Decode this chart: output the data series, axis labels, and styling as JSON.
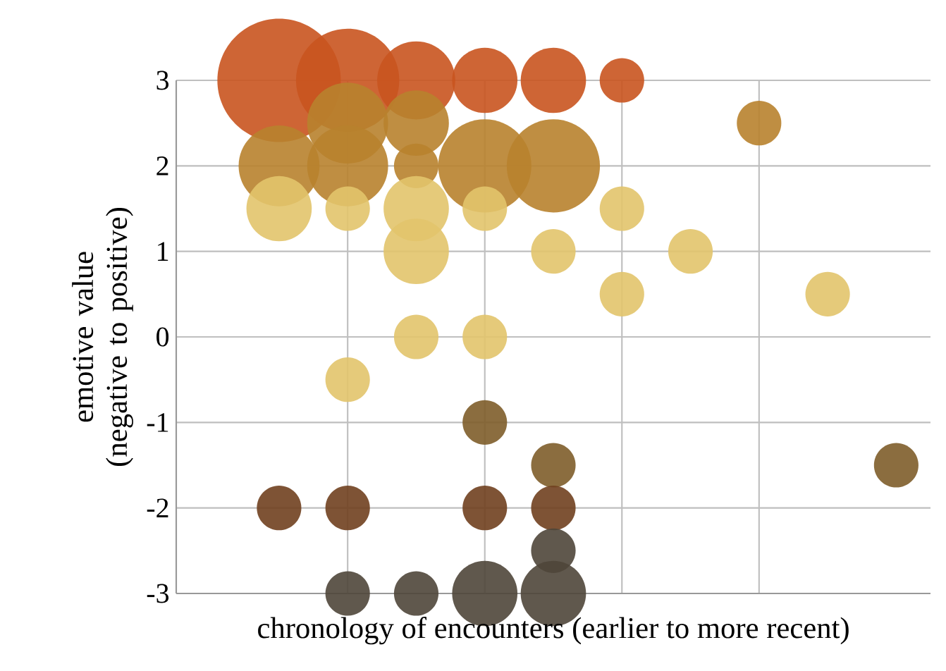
{
  "chart_data": {
    "type": "bubble",
    "xlabel": "chronology of encounters (earlier to more recent)",
    "ylabel": "emotive value (negative to positive)",
    "categories": [
      null,
      null,
      null,
      null,
      null,
      null,
      null,
      null,
      null,
      null,
      null
    ],
    "ylim": [
      -3,
      3
    ],
    "yticks": [
      {
        "value": -3,
        "label": "-3"
      },
      {
        "value": -2,
        "label": "-2"
      },
      {
        "value": -1,
        "label": "-1"
      },
      {
        "value": 0,
        "label": "0"
      },
      {
        "value": 1,
        "label": "1"
      },
      {
        "value": 2,
        "label": "2"
      },
      {
        "value": 3,
        "label": "3"
      }
    ],
    "tick_labels": "y",
    "grid": true,
    "series": [
      {
        "color": "#c9541f",
        "values": [
          null,
          3,
          3,
          3,
          3,
          3,
          3,
          null,
          null,
          null,
          null
        ],
        "sizes": [
          null,
          1,
          0.7,
          0.4,
          0.28,
          0.28,
          0.13,
          null,
          null,
          null,
          null
        ]
      },
      {
        "color": "#b8822e",
        "values": [
          null,
          null,
          2.5,
          2.5,
          null,
          null,
          null,
          null,
          2.5,
          null,
          null
        ],
        "sizes": [
          null,
          null,
          0.43,
          0.28,
          null,
          null,
          null,
          null,
          0.13,
          null,
          null
        ]
      },
      {
        "color": "#b8822e",
        "values": [
          null,
          2,
          2,
          2,
          2,
          2,
          null,
          null,
          null,
          null,
          null
        ],
        "sizes": [
          null,
          0.43,
          0.43,
          0.13,
          0.57,
          0.57,
          null,
          null,
          null,
          null,
          null
        ]
      },
      {
        "color": "#e2c46c",
        "values": [
          null,
          1.5,
          1.5,
          1.5,
          1.5,
          null,
          1.5,
          null,
          null,
          null,
          null
        ],
        "sizes": [
          null,
          0.28,
          0.13,
          0.28,
          0.13,
          null,
          0.13,
          null,
          null,
          null,
          null
        ]
      },
      {
        "color": "#e2c46c",
        "values": [
          null,
          null,
          null,
          1,
          null,
          1,
          null,
          1,
          null,
          null,
          null
        ],
        "sizes": [
          null,
          null,
          null,
          0.28,
          null,
          0.13,
          null,
          0.13,
          null,
          null,
          null
        ]
      },
      {
        "color": "#e2c46c",
        "values": [
          null,
          null,
          null,
          null,
          null,
          null,
          0.5,
          null,
          null,
          0.5,
          null
        ],
        "sizes": [
          null,
          null,
          null,
          null,
          null,
          null,
          0.13,
          null,
          null,
          0.13,
          null
        ]
      },
      {
        "color": "#e2c46c",
        "values": [
          null,
          null,
          null,
          0,
          0,
          null,
          null,
          null,
          null,
          null,
          null
        ],
        "sizes": [
          null,
          null,
          null,
          0.13,
          0.13,
          null,
          null,
          null,
          null,
          null,
          null
        ]
      },
      {
        "color": "#e2c46c",
        "values": [
          null,
          null,
          -0.5,
          null,
          null,
          null,
          null,
          null,
          null,
          null,
          null
        ],
        "sizes": [
          null,
          null,
          0.13,
          null,
          null,
          null,
          null,
          null,
          null,
          null,
          null
        ]
      },
      {
        "color": "#7e5d2a",
        "values": [
          null,
          null,
          null,
          null,
          -1,
          null,
          null,
          null,
          null,
          null,
          null
        ],
        "sizes": [
          null,
          null,
          null,
          null,
          0.13,
          null,
          null,
          null,
          null,
          null,
          null
        ]
      },
      {
        "color": "#7e5d2a",
        "values": [
          null,
          null,
          null,
          null,
          null,
          -1.5,
          null,
          null,
          null,
          null,
          -1.5
        ],
        "sizes": [
          null,
          null,
          null,
          null,
          null,
          0.13,
          null,
          null,
          null,
          null,
          0.13
        ]
      },
      {
        "color": "#70401f",
        "values": [
          null,
          -2,
          -2,
          null,
          -2,
          -2,
          null,
          null,
          null,
          null,
          null
        ],
        "sizes": [
          null,
          0.13,
          0.13,
          null,
          0.13,
          0.13,
          null,
          null,
          null,
          null,
          null
        ]
      },
      {
        "color": "#4f463a",
        "values": [
          null,
          null,
          null,
          null,
          null,
          -2.5,
          null,
          null,
          null,
          null,
          null
        ],
        "sizes": [
          null,
          null,
          null,
          null,
          null,
          0.13,
          null,
          null,
          null,
          null,
          null
        ]
      },
      {
        "color": "#4f463a",
        "values": [
          null,
          null,
          -3,
          -3,
          -3,
          -3,
          null,
          null,
          null,
          null,
          null
        ],
        "sizes": [
          null,
          null,
          0.13,
          0.13,
          0.28,
          0.28,
          null,
          null,
          null,
          null,
          null
        ]
      }
    ]
  }
}
